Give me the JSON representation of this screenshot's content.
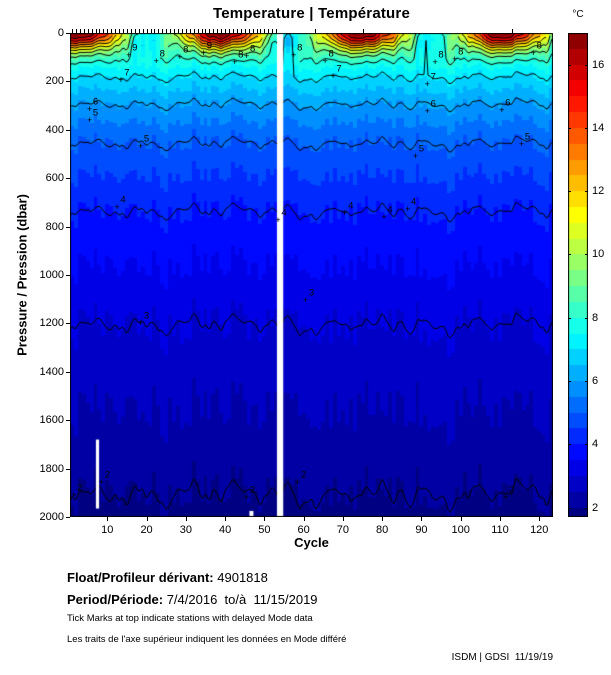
{
  "title": "Temperature | Température",
  "footer": {
    "float_label": "Float/Profileur dérivant:",
    "float_value": "4901818",
    "period_label": "Period/Période:",
    "period_value": "7/4/2016  to/à  11/15/2019",
    "note_en": "Tick Marks at top indicate stations with delayed Mode data",
    "note_fr": "Les traits de l'axe supérieur indiquent les données en Mode différé",
    "credit": "ISDM | GDSI  11/19/19"
  },
  "colors": {
    "background": "#ffffff",
    "axis": "#000000",
    "contour_line": "#000000",
    "deep_water": "#00008f",
    "surface_warm": "#7f0000"
  },
  "chart_data": {
    "type": "heatmap",
    "title": "Temperature | Température",
    "xlabel": "Cycle",
    "ylabel": "Pressure / Pression (dbar)",
    "colorbar_label": "°C",
    "colormap": "jet",
    "xlim": [
      0.5,
      123.5
    ],
    "ylim": [
      0,
      2000
    ],
    "clim": [
      1.7,
      17.0
    ],
    "n_cycles": 123,
    "x_ticks": [
      10,
      20,
      30,
      40,
      50,
      60,
      70,
      80,
      90,
      100,
      110,
      120
    ],
    "y_ticks": [
      0,
      200,
      400,
      600,
      800,
      1000,
      1200,
      1400,
      1600,
      1800,
      2000
    ],
    "colorbar_ticks": [
      2,
      4,
      6,
      8,
      10,
      12,
      14,
      16
    ],
    "grid": false,
    "temperature_profile": {
      "pressure_dbar": [
        0,
        30,
        60,
        100,
        160,
        280,
        430,
        715,
        1170,
        1880,
        2000
      ],
      "temp_c": [
        12.5,
        11.2,
        9.6,
        8.2,
        7.2,
        6.1,
        5.1,
        4.05,
        3.05,
        2.05,
        1.82
      ]
    },
    "seasonal_surface": {
      "mean_c": 12.5,
      "amplitude_c": 4.8,
      "period_cycles": 36,
      "warm_peak_cycle": 3,
      "decay_depth_dbar": 70
    },
    "contour_levels": [
      2,
      3,
      4,
      5,
      6,
      7,
      8,
      9,
      10,
      11,
      12,
      13,
      14,
      15,
      16
    ],
    "contour_labels": [
      {
        "level": 9,
        "cycle": 17,
        "pressure": 60
      },
      {
        "level": 8,
        "cycle": 24,
        "pressure": 85
      },
      {
        "level": 8,
        "cycle": 30,
        "pressure": 70
      },
      {
        "level": 9,
        "cycle": 36,
        "pressure": 55
      },
      {
        "level": 8,
        "cycle": 44,
        "pressure": 90
      },
      {
        "level": 8,
        "cycle": 47,
        "pressure": 65
      },
      {
        "level": 8,
        "cycle": 59,
        "pressure": 60
      },
      {
        "level": 8,
        "cycle": 67,
        "pressure": 85
      },
      {
        "level": 8,
        "cycle": 95,
        "pressure": 90
      },
      {
        "level": 8,
        "cycle": 100,
        "pressure": 80
      },
      {
        "level": 8,
        "cycle": 120,
        "pressure": 55
      },
      {
        "level": 7,
        "cycle": 15,
        "pressure": 165
      },
      {
        "level": 7,
        "cycle": 69,
        "pressure": 150
      },
      {
        "level": 7,
        "cycle": 93,
        "pressure": 180
      },
      {
        "level": 6,
        "cycle": 7,
        "pressure": 285
      },
      {
        "level": 6,
        "cycle": 93,
        "pressure": 295
      },
      {
        "level": 6,
        "cycle": 112,
        "pressure": 290
      },
      {
        "level": 5,
        "cycle": 7,
        "pressure": 330
      },
      {
        "level": 5,
        "cycle": 20,
        "pressure": 440
      },
      {
        "level": 5,
        "cycle": 90,
        "pressure": 480
      },
      {
        "level": 5,
        "cycle": 117,
        "pressure": 430
      },
      {
        "level": 4,
        "cycle": 14,
        "pressure": 690
      },
      {
        "level": 4,
        "cycle": 55,
        "pressure": 745
      },
      {
        "level": 4,
        "cycle": 72,
        "pressure": 715
      },
      {
        "level": 4,
        "cycle": 82,
        "pressure": 730
      },
      {
        "level": 4,
        "cycle": 88,
        "pressure": 700
      },
      {
        "level": 3,
        "cycle": 20,
        "pressure": 1170
      },
      {
        "level": 3,
        "cycle": 62,
        "pressure": 1075
      },
      {
        "level": 2,
        "cycle": 3,
        "pressure": 1880
      },
      {
        "level": 2,
        "cycle": 10,
        "pressure": 1825
      },
      {
        "level": 2,
        "cycle": 47,
        "pressure": 1890
      },
      {
        "level": 2,
        "cycle": 60,
        "pressure": 1825
      },
      {
        "level": 2,
        "cycle": 113,
        "pressure": 1890
      }
    ],
    "missing_data": [
      {
        "cycle_range": [
          53.2,
          54.8
        ],
        "pressure_range": [
          0,
          2000
        ]
      },
      {
        "cycle_range": [
          7.1,
          7.9
        ],
        "pressure_range": [
          1680,
          1965
        ]
      },
      {
        "cycle_range": [
          46.2,
          47.2
        ],
        "pressure_range": [
          1975,
          1998
        ]
      }
    ],
    "delayed_mode_ticks": {
      "cycle_ranges": [
        [
          1,
          53
        ]
      ],
      "single_cycles": [
        63,
        75,
        113
      ]
    }
  }
}
